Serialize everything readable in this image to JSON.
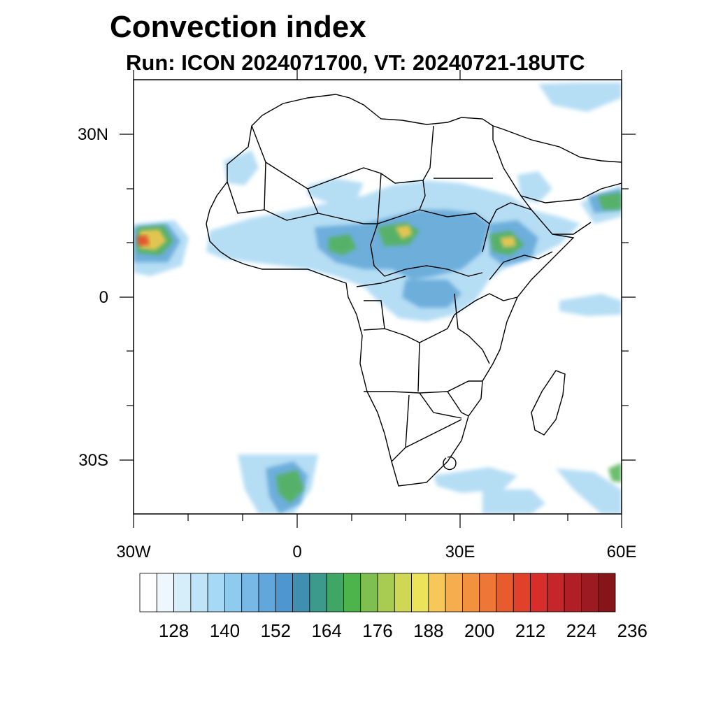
{
  "title": "Convection index",
  "subtitle": "Run: ICON 2024071700,  VT: 20240721-18UTC",
  "axes": {
    "lat_labels": [
      "30N",
      "0",
      "30S"
    ],
    "lon_labels": [
      "30W",
      "0",
      "30E",
      "60E"
    ]
  },
  "colorbar": {
    "labels": [
      "128",
      "140",
      "152",
      "164",
      "176",
      "188",
      "200",
      "212",
      "224",
      "236"
    ],
    "colors": [
      "#ffffff",
      "#eef7fd",
      "#d6eefa",
      "#bfe4f8",
      "#a6d9f5",
      "#8ecbee",
      "#78b8e6",
      "#62a7dc",
      "#4d96cf",
      "#3f8fb0",
      "#3c9a8c",
      "#3fa666",
      "#4db44c",
      "#7ec04f",
      "#a8cc52",
      "#cfd854",
      "#ece35b",
      "#f6c85a",
      "#f6ad4d",
      "#f2923f",
      "#ee7636",
      "#e85b2f",
      "#e1412b",
      "#d72e2b",
      "#c4262a",
      "#b01f26",
      "#9c1a21",
      "#871419"
    ]
  }
}
